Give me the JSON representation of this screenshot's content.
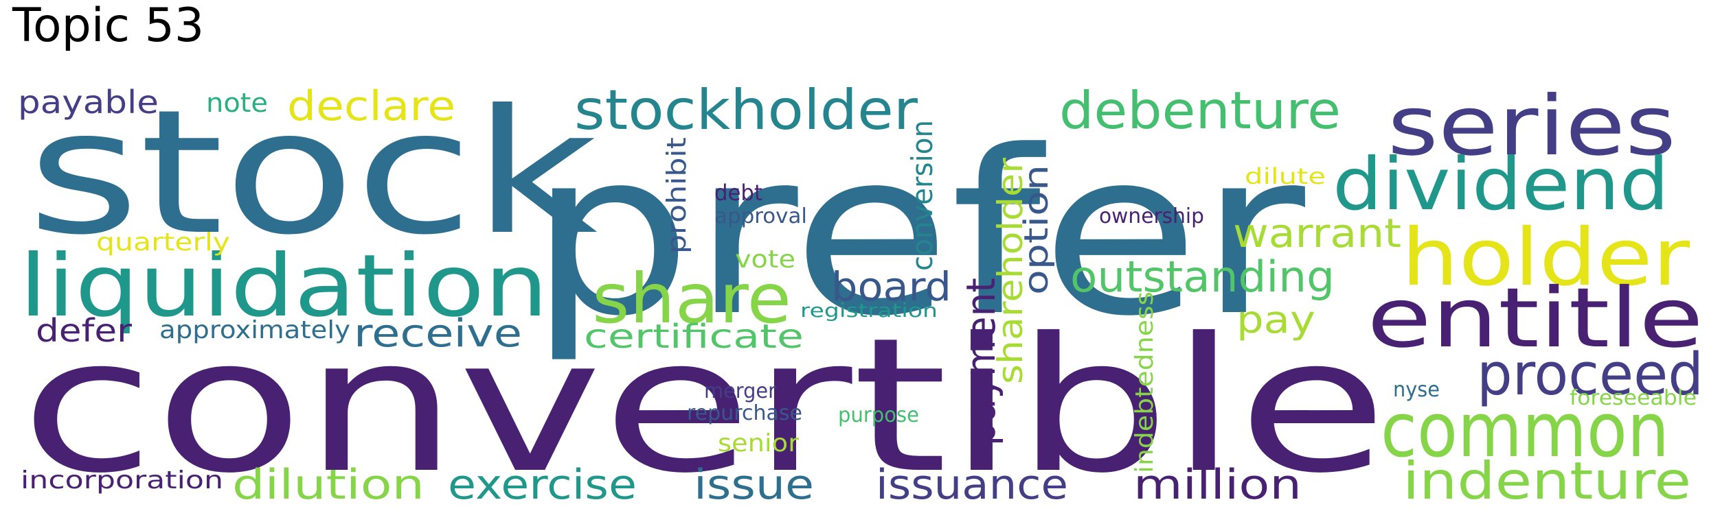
{
  "title": "Topic 53",
  "palette": {
    "dark_purple": "#482173",
    "indigo": "#433e85",
    "slate_blue": "#38588c",
    "steel_blue": "#2e6e8e",
    "teal_blue": "#25858e",
    "teal": "#1f988b",
    "sea_green": "#2ab07f",
    "green": "#44bf70",
    "light_green": "#52c569",
    "lime": "#86d549",
    "yellow_green": "#a8db34",
    "yellow": "#e5e419"
  },
  "words": [
    {
      "text": "prefer",
      "color": "#2e6e8e"
    },
    {
      "text": "stock",
      "color": "#2e6e8e"
    },
    {
      "text": "convertible",
      "color": "#482173"
    },
    {
      "text": "series",
      "color": "#433e85"
    },
    {
      "text": "dividend",
      "color": "#1f988b"
    },
    {
      "text": "holder",
      "color": "#e5e419"
    },
    {
      "text": "entitle",
      "color": "#482173"
    },
    {
      "text": "liquidation",
      "color": "#1f988b"
    },
    {
      "text": "share",
      "color": "#86d549"
    },
    {
      "text": "common",
      "color": "#86d549"
    },
    {
      "text": "indenture",
      "color": "#86d549"
    },
    {
      "text": "proceed",
      "color": "#433e85"
    },
    {
      "text": "stockholder",
      "color": "#25858e"
    },
    {
      "text": "debenture",
      "color": "#44bf70"
    },
    {
      "text": "declare",
      "color": "#e5e419"
    },
    {
      "text": "payable",
      "color": "#433e85"
    },
    {
      "text": "note",
      "color": "#2ab07f"
    },
    {
      "text": "warrant",
      "color": "#a8db34"
    },
    {
      "text": "outstanding",
      "color": "#52c569"
    },
    {
      "text": "board",
      "color": "#38588c"
    },
    {
      "text": "receive",
      "color": "#2e6e8e"
    },
    {
      "text": "certificate",
      "color": "#52c569"
    },
    {
      "text": "pay",
      "color": "#a8db34"
    },
    {
      "text": "defer",
      "color": "#482173"
    },
    {
      "text": "approximately",
      "color": "#2e6e8e"
    },
    {
      "text": "quarterly",
      "color": "#e5e419"
    },
    {
      "text": "vote",
      "color": "#86d549"
    },
    {
      "text": "debt",
      "color": "#482173"
    },
    {
      "text": "approval",
      "color": "#38588c"
    },
    {
      "text": "ownership",
      "color": "#482173"
    },
    {
      "text": "dilute",
      "color": "#e5e419"
    },
    {
      "text": "prohibit",
      "color": "#38588c"
    },
    {
      "text": "conversion",
      "color": "#25858e"
    },
    {
      "text": "shareholder",
      "color": "#a8db34"
    },
    {
      "text": "option",
      "color": "#38588c"
    },
    {
      "text": "payment",
      "color": "#482173"
    },
    {
      "text": "registration",
      "color": "#1f988b"
    },
    {
      "text": "indebtedness",
      "color": "#86d549"
    },
    {
      "text": "merger",
      "color": "#433e85"
    },
    {
      "text": "repurchase",
      "color": "#38588c"
    },
    {
      "text": "purpose",
      "color": "#44bf70"
    },
    {
      "text": "senior",
      "color": "#a8db34"
    },
    {
      "text": "nyse",
      "color": "#2e6e8e"
    },
    {
      "text": "foreseeable",
      "color": "#86d549"
    },
    {
      "text": "incorporation",
      "color": "#482173"
    },
    {
      "text": "dilution",
      "color": "#86d549"
    },
    {
      "text": "exercise",
      "color": "#1f988b"
    },
    {
      "text": "issue",
      "color": "#2e6e8e"
    },
    {
      "text": "issuance",
      "color": "#433e85"
    },
    {
      "text": "million",
      "color": "#482173"
    }
  ]
}
